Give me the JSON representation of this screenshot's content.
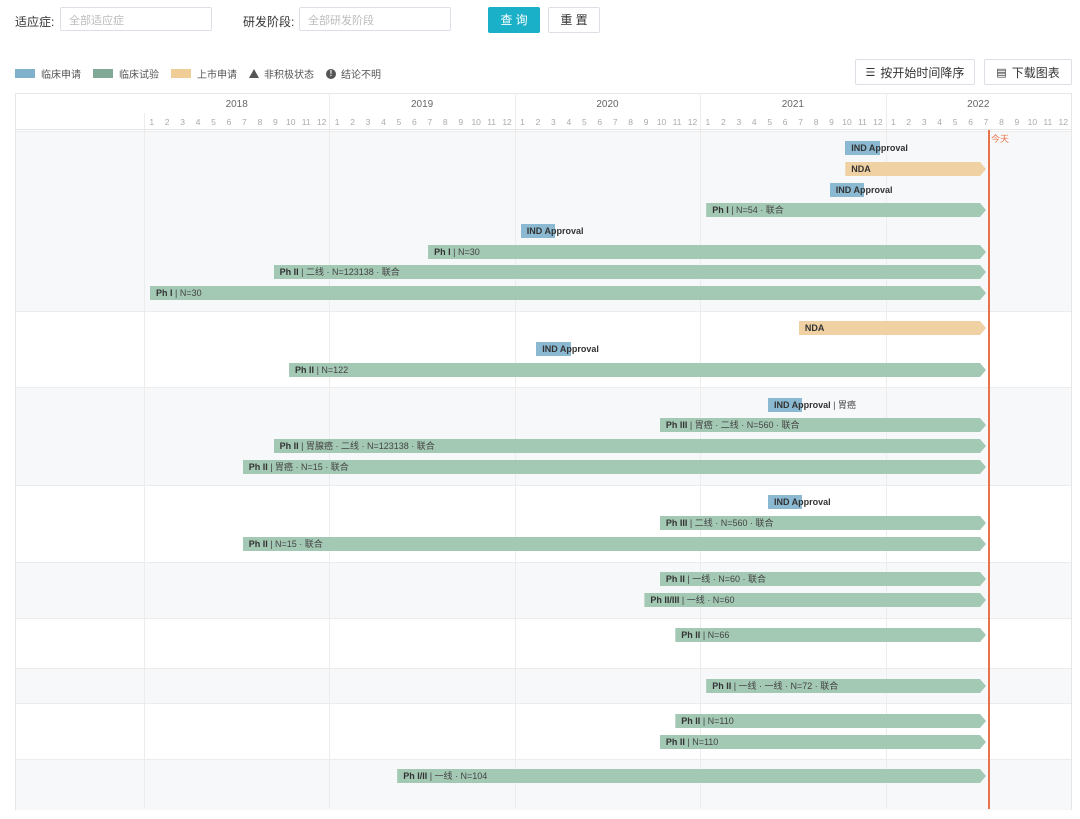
{
  "filters": {
    "indication_label": "适应症:",
    "indication_placeholder": "全部适应症",
    "stage_label": "研发阶段:",
    "stage_placeholder": "全部研发阶段",
    "query_button": "查 询",
    "reset_button": "重 置"
  },
  "legend": [
    {
      "label": "临床申请",
      "color": "#7fb1cb"
    },
    {
      "label": "临床试验",
      "color": "#7fa996"
    },
    {
      "label": "上市申请",
      "color": "#f0cd97"
    },
    {
      "label": "非积极状态",
      "icon": "triangle-icon"
    },
    {
      "label": "结论不明",
      "icon": "info-circle-icon"
    }
  ],
  "toolbar": {
    "sort_label": "按开始时间降序",
    "download_label": "下载图表"
  },
  "colors": {
    "ind": "#8ab9d1",
    "trial": "#a3c8b4",
    "nda": "#efd1a3",
    "today": "#e8734a",
    "accent": "#1ab0c8"
  },
  "timeline": {
    "years": [
      "2018",
      "2019",
      "2020",
      "2021",
      "2022"
    ],
    "months": [
      "1",
      "2",
      "3",
      "4",
      "5",
      "6",
      "7",
      "8",
      "9",
      "10",
      "11",
      "12"
    ],
    "today_label": "今天"
  },
  "bars": [
    {
      "type": "ind",
      "stage": "IND Approval",
      "detail": "",
      "start": "2021-10",
      "end": "2021-12"
    },
    {
      "type": "nda",
      "stage": "NDA",
      "detail": "",
      "start": "2021-10",
      "end": "2022-07"
    },
    {
      "type": "ind",
      "stage": "IND Approval",
      "detail": "",
      "start": "2021-09",
      "end": "2021-11"
    },
    {
      "type": "trial",
      "stage": "Ph I",
      "detail": "N=54 · 联合",
      "start": "2021-01",
      "end": "2022-07"
    },
    {
      "type": "ind",
      "stage": "IND Approval",
      "detail": "",
      "start": "2020-01",
      "end": "2020-03"
    },
    {
      "type": "trial",
      "stage": "Ph I",
      "detail": "N=30",
      "start": "2019-07",
      "end": "2022-07"
    },
    {
      "type": "trial",
      "stage": "Ph II",
      "detail": "二线 · N=123138 · 联合",
      "start": "2018-09",
      "end": "2022-07"
    },
    {
      "type": "trial",
      "stage": "Ph I",
      "detail": "N=30",
      "start": "2018-01",
      "end": "2022-07"
    },
    {
      "type": "nda",
      "stage": "NDA",
      "detail": "",
      "start": "2021-07",
      "end": "2022-07"
    },
    {
      "type": "ind",
      "stage": "IND Approval",
      "detail": "",
      "start": "2020-02",
      "end": "2020-04"
    },
    {
      "type": "trial",
      "stage": "Ph II",
      "detail": "N=122",
      "start": "2018-10",
      "end": "2022-07"
    },
    {
      "type": "ind",
      "stage": "IND Approval",
      "detail": "胃癌",
      "start": "2021-05",
      "end": "2021-07"
    },
    {
      "type": "trial",
      "stage": "Ph III",
      "detail": "胃癌 · 二线 · N=560 · 联合",
      "start": "2020-10",
      "end": "2022-07"
    },
    {
      "type": "trial",
      "stage": "Ph II",
      "detail": "胃腺癌 · 二线 · N=123138 · 联合",
      "start": "2018-09",
      "end": "2022-07"
    },
    {
      "type": "trial",
      "stage": "Ph II",
      "detail": "胃癌 · N=15 · 联合",
      "start": "2018-07",
      "end": "2022-07"
    },
    {
      "type": "ind",
      "stage": "IND Approval",
      "detail": "",
      "start": "2021-05",
      "end": "2021-07"
    },
    {
      "type": "trial",
      "stage": "Ph III",
      "detail": "二线 · N=560 · 联合",
      "start": "2020-10",
      "end": "2022-07"
    },
    {
      "type": "trial",
      "stage": "Ph II",
      "detail": "N=15 · 联合",
      "start": "2018-07",
      "end": "2022-07"
    },
    {
      "type": "trial",
      "stage": "Ph II",
      "detail": "一线 · N=60 · 联合",
      "start": "2020-10",
      "end": "2022-07"
    },
    {
      "type": "trial",
      "stage": "Ph II/III",
      "detail": "一线 · N=60",
      "start": "2020-09",
      "end": "2022-07"
    },
    {
      "type": "trial",
      "stage": "Ph II",
      "detail": "N=66",
      "start": "2020-11",
      "end": "2022-07"
    },
    {
      "type": "trial",
      "stage": "Ph II",
      "detail": "一线 · 一线 · N=72 · 联合",
      "start": "2021-01",
      "end": "2022-07"
    },
    {
      "type": "trial",
      "stage": "Ph II",
      "detail": "N=110",
      "start": "2020-11",
      "end": "2022-07"
    },
    {
      "type": "trial",
      "stage": "Ph II",
      "detail": "N=110",
      "start": "2020-10",
      "end": "2022-07"
    },
    {
      "type": "trial",
      "stage": "Ph I/II",
      "detail": "一线 · N=104",
      "start": "2019-05",
      "end": "2022-07"
    }
  ]
}
